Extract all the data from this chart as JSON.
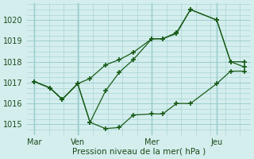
{
  "xlabel": "Pression niveau de la mer( hPa )",
  "ylim": [
    1014.5,
    1020.8
  ],
  "yticks": [
    1015,
    1016,
    1017,
    1018,
    1019,
    1020
  ],
  "background_color": "#d4eeed",
  "grid_color": "#9ecece",
  "line_color": "#1a5c1a",
  "vline_color": "#6ab4b4",
  "xtick_labels": [
    "Mar",
    "Ven",
    "Mer",
    "Jeu"
  ],
  "xtick_positions": [
    0,
    28,
    76,
    118
  ],
  "xlim": [
    -5,
    140
  ],
  "series1_x": [
    0,
    10,
    18,
    28,
    36,
    46,
    55,
    64,
    76,
    83,
    92,
    101,
    118,
    127,
    136
  ],
  "series1_y": [
    1017.05,
    1016.75,
    1016.2,
    1016.95,
    1015.1,
    1014.8,
    1014.85,
    1015.45,
    1015.5,
    1015.5,
    1016.0,
    1016.0,
    1016.95,
    1017.55,
    1017.55
  ],
  "series2_x": [
    0,
    10,
    18,
    28,
    36,
    46,
    55,
    64,
    76,
    83,
    92,
    101,
    118,
    127,
    136
  ],
  "series2_y": [
    1017.05,
    1016.75,
    1016.2,
    1016.95,
    1017.2,
    1017.85,
    1018.1,
    1018.45,
    1019.1,
    1019.1,
    1019.35,
    1020.5,
    1020.0,
    1018.0,
    1018.0
  ],
  "series3_x": [
    0,
    10,
    18,
    28,
    36,
    46,
    55,
    64,
    76,
    83,
    92,
    101,
    118,
    127,
    136
  ],
  "series3_y": [
    1017.05,
    1016.75,
    1016.2,
    1016.95,
    1015.1,
    1016.6,
    1017.5,
    1018.1,
    1019.1,
    1019.1,
    1019.4,
    1020.5,
    1020.0,
    1018.0,
    1017.75
  ]
}
